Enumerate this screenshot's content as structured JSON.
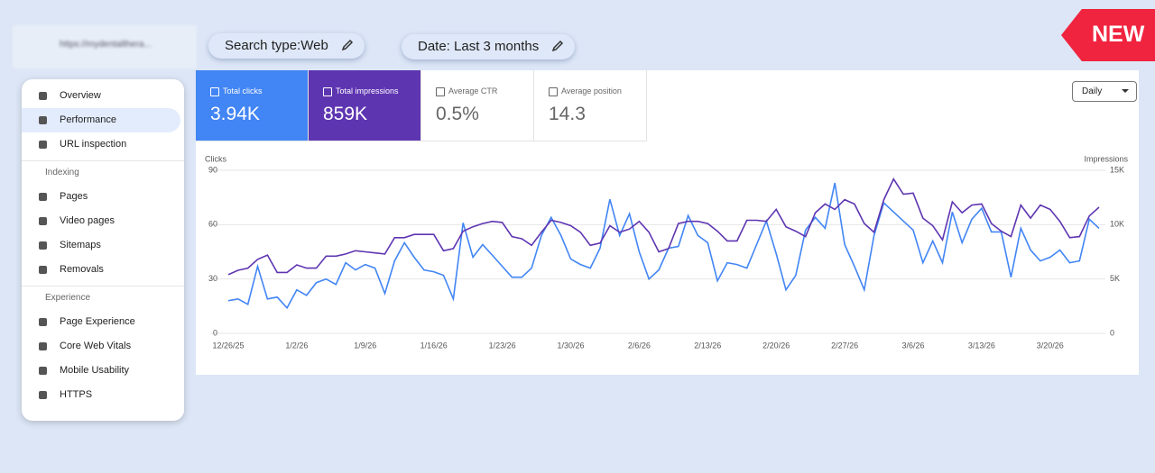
{
  "site": "https://mydentalthera...",
  "filters": [
    "Search type:Web",
    "Date: Last 3 months"
  ],
  "badge": "NEW",
  "sidebar": {
    "items": [
      "Overview",
      "Performance",
      "URL inspection"
    ],
    "sections": [
      {
        "title": "Indexing",
        "items": [
          "Pages",
          "Video pages",
          "Sitemaps",
          "Removals"
        ]
      },
      {
        "title": "Experience",
        "items": [
          "Page Experience",
          "Core Web Vitals",
          "Mobile Usability",
          "HTTPS"
        ]
      }
    ]
  },
  "metrics": [
    {
      "label": "Total clicks",
      "value": "3.94K"
    },
    {
      "label": "Total impressions",
      "value": "859K"
    },
    {
      "label": "Average CTR",
      "value": "0.5%"
    },
    {
      "label": "Average position",
      "value": "14.3"
    }
  ],
  "granularity": "Daily",
  "chart_data": {
    "type": "line",
    "y_label": "Clicks",
    "y2_label": "Impressions",
    "categories": [
      "12/26/25",
      null,
      null,
      null,
      null,
      null,
      null,
      "1/2/26",
      null,
      null,
      null,
      null,
      null,
      null,
      "1/9/26",
      null,
      null,
      null,
      null,
      null,
      null,
      "1/16/26",
      null,
      null,
      null,
      null,
      null,
      null,
      "1/23/26",
      null,
      null,
      null,
      null,
      null,
      null,
      "1/30/26",
      null,
      null,
      null,
      null,
      null,
      null,
      "2/6/26",
      null,
      null,
      null,
      null,
      null,
      null,
      "2/13/26",
      null,
      null,
      null,
      null,
      null,
      null,
      "2/20/26",
      null,
      null,
      null,
      null,
      null,
      null,
      "2/27/26",
      null,
      null,
      null,
      null,
      null,
      null,
      "3/6/26",
      null,
      null,
      null,
      null,
      null,
      null,
      "3/13/26",
      null,
      null,
      null,
      null,
      null,
      null,
      "3/20/26",
      null,
      null,
      null,
      null,
      null
    ],
    "series": [
      {
        "name": "Clicks",
        "color": "#4285f4",
        "values": [
          18,
          19,
          16,
          37,
          19,
          20,
          14,
          24,
          21,
          28,
          30,
          27,
          39,
          35,
          38,
          36,
          22,
          40,
          50,
          42,
          35,
          34,
          32,
          19,
          61,
          42,
          49,
          43,
          37,
          31,
          31,
          36,
          54,
          64,
          54,
          41,
          38,
          36,
          47,
          74,
          54,
          66,
          45,
          30,
          35,
          47,
          48,
          65,
          54,
          50,
          29,
          39,
          38,
          36,
          49,
          62,
          44,
          24,
          32,
          57,
          64,
          58,
          83,
          49,
          37,
          24,
          54,
          72,
          67,
          62,
          57,
          39,
          51,
          39,
          67,
          50,
          63,
          69,
          56,
          56,
          31,
          58,
          46,
          40,
          42,
          46,
          39,
          40,
          63,
          58
        ]
      },
      {
        "name": "Impressions",
        "color": "#5e35b1",
        "axis": "y2",
        "values": [
          5.4,
          5.8,
          6.0,
          6.8,
          7.2,
          5.6,
          5.6,
          6.3,
          6.0,
          6.0,
          7.1,
          7.1,
          7.3,
          7.6,
          7.5,
          7.4,
          7.3,
          8.8,
          8.8,
          9.1,
          9.1,
          9.1,
          7.6,
          7.8,
          9.4,
          9.8,
          10.1,
          10.3,
          10.2,
          8.9,
          8.7,
          8.1,
          9.3,
          10.4,
          10.2,
          9.9,
          9.3,
          8.1,
          8.3,
          9.9,
          9.3,
          9.6,
          10.3,
          9.3,
          7.5,
          7.8,
          10.1,
          10.3,
          10.3,
          10.1,
          9.4,
          8.5,
          8.5,
          10.4,
          10.4,
          10.3,
          11.4,
          9.8,
          9.4,
          8.9,
          11.1,
          11.9,
          11.4,
          12.3,
          11.9,
          10.1,
          9.3,
          12.3,
          14.2,
          12.8,
          12.9,
          10.6,
          9.9,
          8.6,
          12.1,
          11.1,
          11.8,
          11.9,
          10.1,
          9.4,
          8.9,
          11.8,
          10.6,
          11.8,
          11.4,
          10.3,
          8.8,
          8.9,
          10.8,
          11.6
        ]
      }
    ],
    "ylim": [
      0,
      90
    ],
    "yticks": [
      0,
      30,
      60,
      90
    ],
    "y2lim": [
      0,
      15
    ],
    "y2ticks": [
      0,
      {
        "value": 5,
        "label": "5K"
      },
      {
        "value": 10,
        "label": "10K"
      },
      {
        "value": 15,
        "label": "15K"
      }
    ],
    "grid": true
  }
}
